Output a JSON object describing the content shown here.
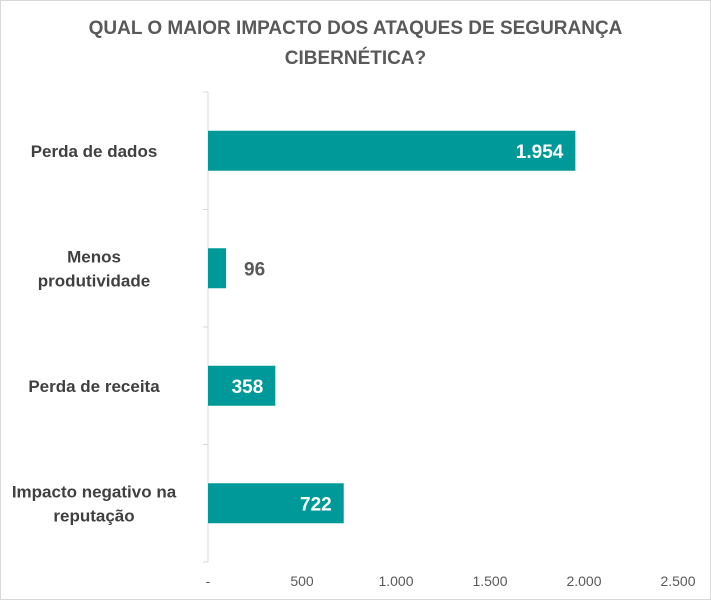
{
  "chart_data": {
    "type": "bar",
    "orientation": "horizontal",
    "title_lines": [
      "QUAL O MAIOR IMPACTO DOS ATAQUES DE SEGURANÇA",
      "CIBERNÉTICA?"
    ],
    "categories": [
      [
        "Perda de dados"
      ],
      [
        "Menos",
        "produtividade"
      ],
      [
        "Perda de receita"
      ],
      [
        "Impacto negativo na",
        "reputação"
      ]
    ],
    "values": [
      1954,
      96,
      358,
      722
    ],
    "value_labels": [
      "1.954",
      "96",
      "358",
      "722"
    ],
    "xlim": [
      0,
      2500
    ],
    "x_ticks": [
      0,
      500,
      1000,
      1500,
      2000,
      2500
    ],
    "x_tick_labels": [
      "-",
      "500",
      "1.000",
      "1.500",
      "2.000",
      "2.500"
    ],
    "bar_color": "#009999",
    "grid": false,
    "legend": "none"
  }
}
